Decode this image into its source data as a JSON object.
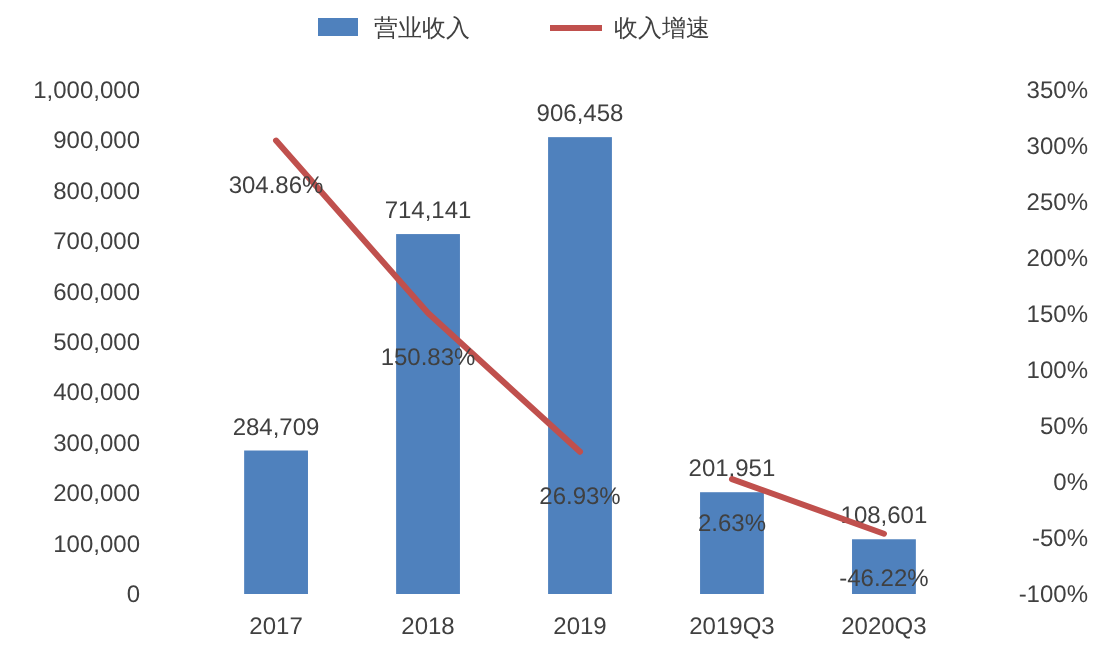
{
  "chart_data": {
    "type": "bar",
    "categories": [
      "2017",
      "2018",
      "2019",
      "2019Q3",
      "2020Q3"
    ],
    "series": [
      {
        "name": "营业收入",
        "color": "#4f81bd",
        "values": [
          284709,
          714141,
          906458,
          201951,
          108601
        ],
        "value_labels": [
          "284,709",
          "714,141",
          "906,458",
          "201,951",
          "108,601"
        ]
      },
      {
        "name": "收入增速",
        "type": "line",
        "axis": "y2",
        "color": "#c0504d",
        "values": [
          304.86,
          150.83,
          26.93,
          null,
          null
        ],
        "value_labels": [
          "304.86%",
          "150.83%",
          "26.93%",
          null,
          null
        ]
      },
      {
        "type": "line",
        "axis": "y2",
        "color": "#c0504d",
        "values": [
          null,
          null,
          null,
          2.63,
          -46.22
        ],
        "value_labels": [
          null,
          null,
          null,
          "2.63%",
          "-46.22%"
        ]
      }
    ],
    "ylim": [
      0,
      1000000
    ],
    "yticks": [
      0,
      {
        "value": 100000,
        "label": "100,000"
      },
      {
        "value": 200000,
        "label": "200,000"
      },
      {
        "value": 300000,
        "label": "300,000"
      },
      {
        "value": 400000,
        "label": "400,000"
      },
      {
        "value": 500000,
        "label": "500,000"
      },
      {
        "value": 600000,
        "label": "600,000"
      },
      {
        "value": 700000,
        "label": "700,000"
      },
      {
        "value": 800000,
        "label": "800,000"
      },
      {
        "value": 900000,
        "label": "900,000"
      },
      {
        "value": 1000000,
        "label": "1,000,000"
      }
    ],
    "y2lim": [
      -100,
      350
    ],
    "y2ticks": [
      {
        "value": -100,
        "label": "-100%"
      },
      {
        "value": -50,
        "label": "-50%"
      },
      {
        "value": 0,
        "label": "0%"
      },
      {
        "value": 50,
        "label": "50%"
      },
      {
        "value": 100,
        "label": "100%"
      },
      {
        "value": 150,
        "label": "150%"
      },
      {
        "value": 200,
        "label": "200%"
      },
      {
        "value": 250,
        "label": "250%"
      },
      {
        "value": 300,
        "label": "300%"
      },
      {
        "value": 350,
        "label": "350%"
      }
    ],
    "legend": "top",
    "marker": "none",
    "grid": false
  }
}
